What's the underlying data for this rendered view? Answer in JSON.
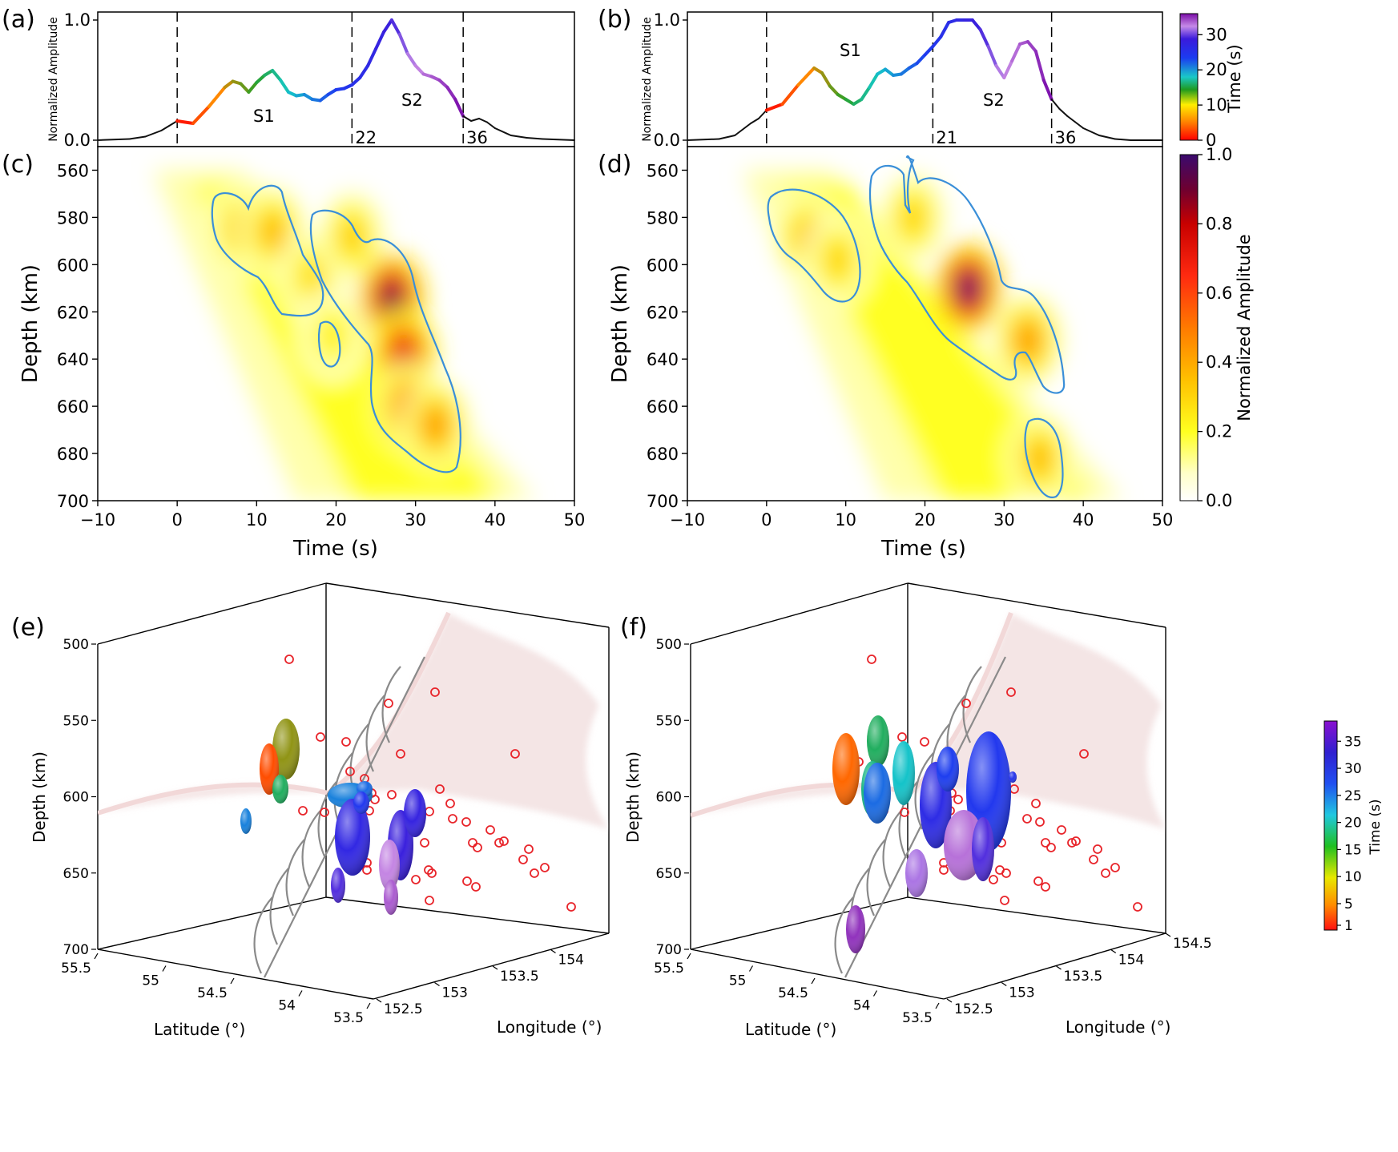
{
  "panel_labels": [
    "(a)",
    "(b)",
    "(c)",
    "(d)",
    "(e)",
    "(f)"
  ],
  "colors": {
    "contour": "#3a8fd8",
    "slab": "#f1dcdc",
    "marker": "#e8242a",
    "trench": "#8a8a8a",
    "axis": "#000000"
  },
  "colorbars": {
    "time_top": {
      "label": "Time (s)",
      "ticks": [
        "0",
        "10",
        "20",
        "30"
      ],
      "range": [
        0,
        36
      ]
    },
    "amplitude": {
      "label": "Normalized Amplitude",
      "ticks": [
        "0.0",
        "0.2",
        "0.4",
        "0.6",
        "0.8",
        "1.0"
      ],
      "range": [
        0,
        1
      ]
    },
    "time_3d": {
      "label": "Time (s)",
      "ticks": [
        "1",
        "5",
        "10",
        "15",
        "20",
        "25",
        "30",
        "35"
      ],
      "range": [
        1,
        38
      ]
    }
  },
  "panels_3d": {
    "z_label": "Depth (km)",
    "z_ticks": [
      "500",
      "550",
      "600",
      "650",
      "700"
    ],
    "lat_label": "Latitude (°)",
    "lon_label": "Longitude (°)",
    "e": {
      "lat_ticks": [
        "55.5",
        "55",
        "54.5",
        "54",
        "53.5"
      ],
      "lon_ticks": [
        "152.5",
        "153",
        "153.5",
        "154"
      ]
    },
    "f": {
      "lat_ticks": [
        "55.5",
        "55",
        "54.5",
        "54",
        "53.5"
      ],
      "lon_ticks": [
        "152.5",
        "153",
        "153.5",
        "154",
        "154.5"
      ]
    }
  },
  "chart_data": [
    {
      "id": "a",
      "type": "line",
      "ylabel": "Normalized Amplitude",
      "xlim": [
        -10,
        50
      ],
      "ylim": [
        0,
        1
      ],
      "yticks": [
        "0.0",
        "1.0"
      ],
      "x": [
        -10,
        -6,
        -4,
        -2,
        -1,
        0,
        2,
        4,
        6,
        7,
        8,
        9,
        10,
        11,
        12,
        13,
        14,
        15,
        16,
        17,
        18,
        19,
        20,
        21,
        22,
        23,
        24,
        25,
        26,
        27,
        28,
        29,
        30,
        31,
        32,
        33,
        34,
        35,
        36,
        37,
        38,
        39,
        40,
        42,
        44,
        46,
        50
      ],
      "y": [
        0.0,
        0.01,
        0.03,
        0.08,
        0.12,
        0.16,
        0.14,
        0.28,
        0.44,
        0.49,
        0.47,
        0.4,
        0.48,
        0.54,
        0.58,
        0.5,
        0.4,
        0.37,
        0.38,
        0.34,
        0.33,
        0.38,
        0.42,
        0.43,
        0.46,
        0.52,
        0.62,
        0.76,
        0.9,
        1.0,
        0.88,
        0.72,
        0.62,
        0.55,
        0.53,
        0.5,
        0.44,
        0.34,
        0.2,
        0.16,
        0.18,
        0.15,
        0.1,
        0.04,
        0.02,
        0.01,
        0.0
      ],
      "color_by": "time",
      "markers": [
        {
          "x": 0,
          "label": ""
        },
        {
          "x": 22,
          "label": "22"
        },
        {
          "x": 36,
          "label": "36"
        }
      ],
      "annotations": [
        "S1",
        "S2"
      ]
    },
    {
      "id": "b",
      "type": "line",
      "ylabel": "Normalized Amplitude",
      "xlim": [
        -10,
        50
      ],
      "ylim": [
        0,
        1
      ],
      "yticks": [
        "0.0",
        "1.0"
      ],
      "x": [
        -10,
        -6,
        -4,
        -2,
        -1,
        0,
        2,
        4,
        6,
        7,
        8,
        9,
        10,
        11,
        12,
        13,
        14,
        15,
        16,
        17,
        18,
        19,
        20,
        21,
        22,
        23,
        24,
        25,
        26,
        27,
        28,
        29,
        30,
        31,
        32,
        33,
        34,
        35,
        36,
        37,
        38,
        39,
        40,
        42,
        44,
        46,
        50
      ],
      "y": [
        0.0,
        0.01,
        0.04,
        0.14,
        0.18,
        0.25,
        0.3,
        0.46,
        0.6,
        0.56,
        0.45,
        0.38,
        0.34,
        0.3,
        0.34,
        0.44,
        0.55,
        0.59,
        0.54,
        0.55,
        0.6,
        0.64,
        0.71,
        0.78,
        0.86,
        0.98,
        1.0,
        1.0,
        1.0,
        0.92,
        0.78,
        0.62,
        0.52,
        0.66,
        0.8,
        0.82,
        0.74,
        0.5,
        0.34,
        0.26,
        0.2,
        0.15,
        0.1,
        0.04,
        0.01,
        0.0,
        0.0
      ],
      "color_by": "time",
      "markers": [
        {
          "x": 0,
          "label": ""
        },
        {
          "x": 21,
          "label": "21"
        },
        {
          "x": 36,
          "label": "36"
        }
      ],
      "annotations": [
        "S1",
        "S2"
      ]
    },
    {
      "id": "c",
      "type": "heatmap",
      "xlabel": "Time (s)",
      "ylabel": "Depth (km)",
      "xlim": [
        -10,
        50
      ],
      "ylim": [
        700,
        550
      ],
      "xticks": [
        "−10",
        "0",
        "10",
        "20",
        "30",
        "40",
        "50"
      ],
      "yticks": [
        "560",
        "580",
        "600",
        "620",
        "640",
        "660",
        "680",
        "700"
      ],
      "value_range": [
        0,
        1
      ],
      "peaks": [
        {
          "t": 8.0,
          "depth": 585,
          "amp": 0.35
        },
        {
          "t": 12.0,
          "depth": 586,
          "amp": 0.38
        },
        {
          "t": 17.0,
          "depth": 605,
          "amp": 0.3
        },
        {
          "t": 19.5,
          "depth": 630,
          "amp": 0.25
        },
        {
          "t": 22.0,
          "depth": 588,
          "amp": 0.33
        },
        {
          "t": 27.0,
          "depth": 614,
          "amp": 0.95
        },
        {
          "t": 28.5,
          "depth": 638,
          "amp": 0.75
        },
        {
          "t": 29.0,
          "depth": 660,
          "amp": 0.5
        },
        {
          "t": 32.5,
          "depth": 668,
          "amp": 0.45
        }
      ]
    },
    {
      "id": "d",
      "type": "heatmap",
      "xlabel": "Time (s)",
      "ylabel": "Depth (km)",
      "xlim": [
        -10,
        50
      ],
      "ylim": [
        700,
        550
      ],
      "xticks": [
        "−10",
        "0",
        "10",
        "20",
        "30",
        "40",
        "50"
      ],
      "yticks": [
        "560",
        "580",
        "600",
        "620",
        "640",
        "660",
        "680",
        "700"
      ],
      "value_range": [
        0,
        1
      ],
      "peaks": [
        {
          "t": 5.0,
          "depth": 588,
          "amp": 0.35
        },
        {
          "t": 9.0,
          "depth": 598,
          "amp": 0.32
        },
        {
          "t": 18.5,
          "depth": 580,
          "amp": 0.32
        },
        {
          "t": 25.5,
          "depth": 610,
          "amp": 1.0
        },
        {
          "t": 33.0,
          "depth": 632,
          "amp": 0.45
        },
        {
          "t": 34.5,
          "depth": 682,
          "amp": 0.38
        }
      ]
    }
  ]
}
